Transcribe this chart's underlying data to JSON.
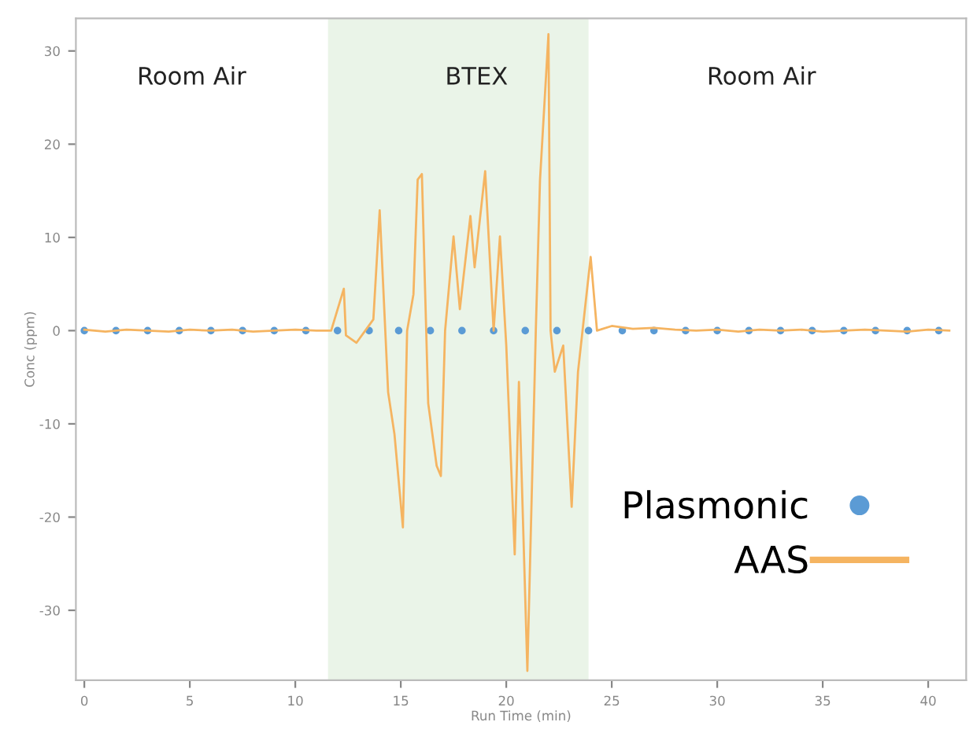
{
  "chart_data": {
    "type": "line",
    "xlabel": "Run Time (min)",
    "ylabel": "Conc (ppm)",
    "xlim": [
      -0.4,
      41.8
    ],
    "ylim": [
      -37.5,
      33.5
    ],
    "xticks": [
      0,
      5,
      10,
      15,
      20,
      25,
      30,
      35,
      40
    ],
    "yticks": [
      -30,
      -20,
      -10,
      0,
      10,
      20,
      30
    ],
    "grid": false,
    "legend": "bottom right",
    "bands": [
      {
        "axis": "x",
        "from": 11.55,
        "to": 23.9,
        "color": "#eaf4e8"
      }
    ],
    "annotations": [
      "Room Air",
      "BTEX",
      "Room Air"
    ],
    "series": [
      {
        "name": "Plasmonic",
        "type": "scatter",
        "marker": "circle",
        "color": "#5b9bd5",
        "x": [
          0,
          1.5,
          3,
          4.5,
          6,
          7.5,
          9,
          10.5,
          12,
          13.5,
          14.9,
          16.4,
          17.9,
          19.4,
          20.9,
          22.4,
          23.9,
          25.5,
          27,
          28.5,
          30,
          31.5,
          33,
          34.5,
          36,
          37.5,
          39,
          40.5
        ],
        "values": [
          0,
          0,
          0,
          0,
          0,
          0,
          0,
          0,
          0,
          0,
          0,
          0,
          0,
          0,
          0,
          0,
          0,
          0,
          0,
          0,
          0,
          0,
          0,
          0,
          0,
          0,
          0,
          0
        ]
      },
      {
        "name": "AAS",
        "marker": "none",
        "line_style": "solid",
        "color": "#f5b461",
        "x": [
          0,
          1,
          2,
          3,
          4,
          5,
          6,
          7,
          8,
          9,
          10,
          11,
          11.7,
          12.3,
          12.4,
          12.9,
          13.7,
          14.0,
          14.4,
          14.7,
          15.1,
          15.3,
          15.6,
          15.8,
          16.0,
          16.3,
          16.7,
          16.9,
          17.1,
          17.5,
          17.8,
          18.3,
          18.5,
          19.0,
          19.4,
          19.7,
          20.0,
          20.4,
          20.6,
          21.0,
          21.4,
          21.6,
          22.0,
          22.1,
          22.3,
          22.7,
          23.1,
          23.4,
          24.0,
          24.3,
          25,
          26,
          27,
          28,
          29,
          30,
          31,
          32,
          33,
          34,
          35,
          36,
          37,
          38,
          39,
          40,
          41
        ],
        "values": [
          0.1,
          -0.1,
          0.1,
          0,
          -0.1,
          0.1,
          0,
          0.1,
          -0.1,
          0,
          0.1,
          0,
          0,
          4.5,
          -0.5,
          -1.3,
          1.2,
          12.9,
          -6.6,
          -11.1,
          -21.1,
          0,
          3.9,
          16.2,
          16.8,
          -7.8,
          -14.5,
          -15.6,
          0,
          10.1,
          2.3,
          12.3,
          6.8,
          17.1,
          0,
          10.1,
          -1.6,
          -24,
          -5.5,
          -36.5,
          0,
          16.2,
          31.8,
          0,
          -4.4,
          -1.6,
          -18.9,
          -4.4,
          7.9,
          0,
          0.5,
          0.2,
          0.3,
          0.1,
          0,
          0.1,
          -0.1,
          0.1,
          0,
          0.1,
          -0.1,
          0,
          0.1,
          0,
          -0.1,
          0.1,
          0
        ]
      }
    ]
  }
}
